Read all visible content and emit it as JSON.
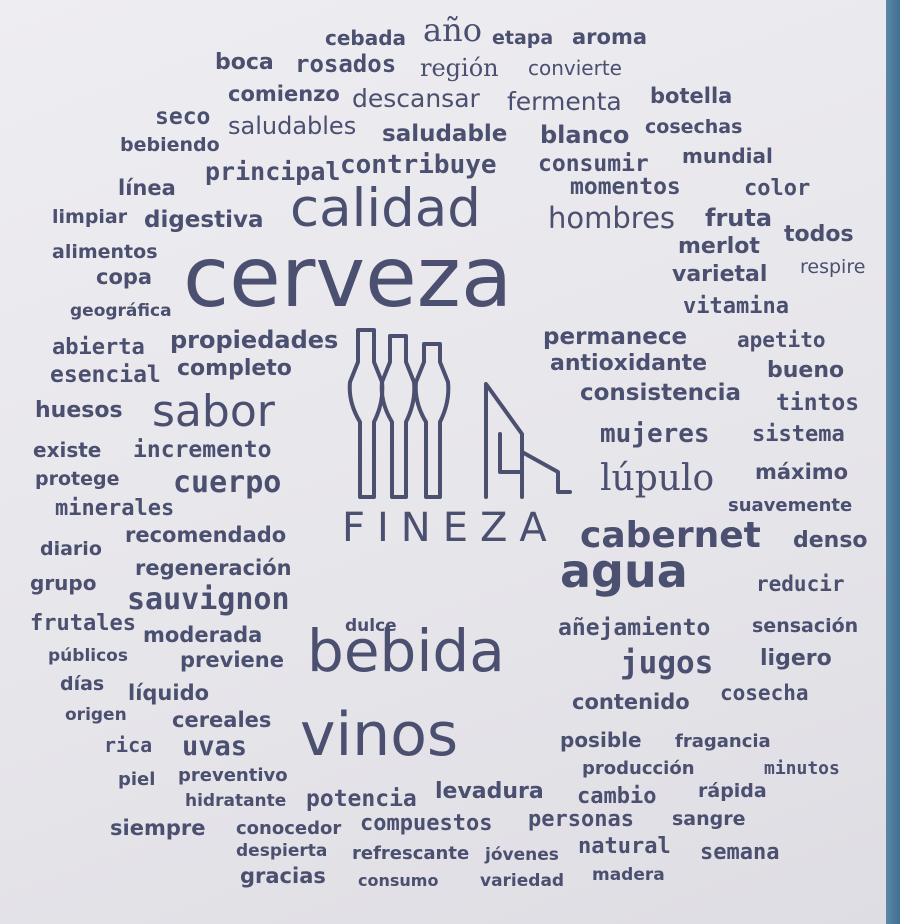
{
  "brand": "FINEZA",
  "logo_icon": "wine-bottles-and-glass-icon",
  "colors": {
    "ink": "#4b4f70",
    "paper": "#e9e8ec"
  },
  "words": [
    "cebada",
    "año",
    "etapa",
    "aroma",
    "boca",
    "rosados",
    "región",
    "convierte",
    "comienzo",
    "descansar",
    "fermenta",
    "botella",
    "seco",
    "saludables",
    "saludable",
    "blanco",
    "cosechas",
    "bebiendo",
    "principal",
    "contribuye",
    "consumir",
    "mundial",
    "línea",
    "momentos",
    "color",
    "limpiar",
    "digestiva",
    "calidad",
    "hombres",
    "fruta",
    "alimentos",
    "cerveza",
    "merlot",
    "todos",
    "copa",
    "varietal",
    "respire",
    "geográfica",
    "vitamina",
    "abierta",
    "propiedades",
    "permanece",
    "apetito",
    "esencial",
    "completo",
    "antioxidante",
    "bueno",
    "consistencia",
    "huesos",
    "sabor",
    "tintos",
    "mujeres",
    "sistema",
    "existe",
    "incremento",
    "protege",
    "cuerpo",
    "lúpulo",
    "máximo",
    "minerales",
    "suavemente",
    "recomendado",
    "cabernet",
    "denso",
    "diario",
    "regeneración",
    "agua",
    "grupo",
    "reducir",
    "sauvignon",
    "frutales",
    "moderada",
    "dulce",
    "añejamiento",
    "sensación",
    "públicos",
    "previene",
    "bebida",
    "jugos",
    "ligero",
    "días",
    "líquido",
    "contenido",
    "cosecha",
    "origen",
    "cereales",
    "rica",
    "uvas",
    "vinos",
    "posible",
    "fragancia",
    "producción",
    "minutos",
    "piel",
    "preventivo",
    "hidratante",
    "potencia",
    "levadura",
    "cambio",
    "rápida",
    "siempre",
    "conocedor",
    "compuestos",
    "personas",
    "sangre",
    "despierta",
    "refrescante",
    "jóvenes",
    "natural",
    "semana",
    "gracias",
    "consumo",
    "variedad",
    "madera"
  ]
}
